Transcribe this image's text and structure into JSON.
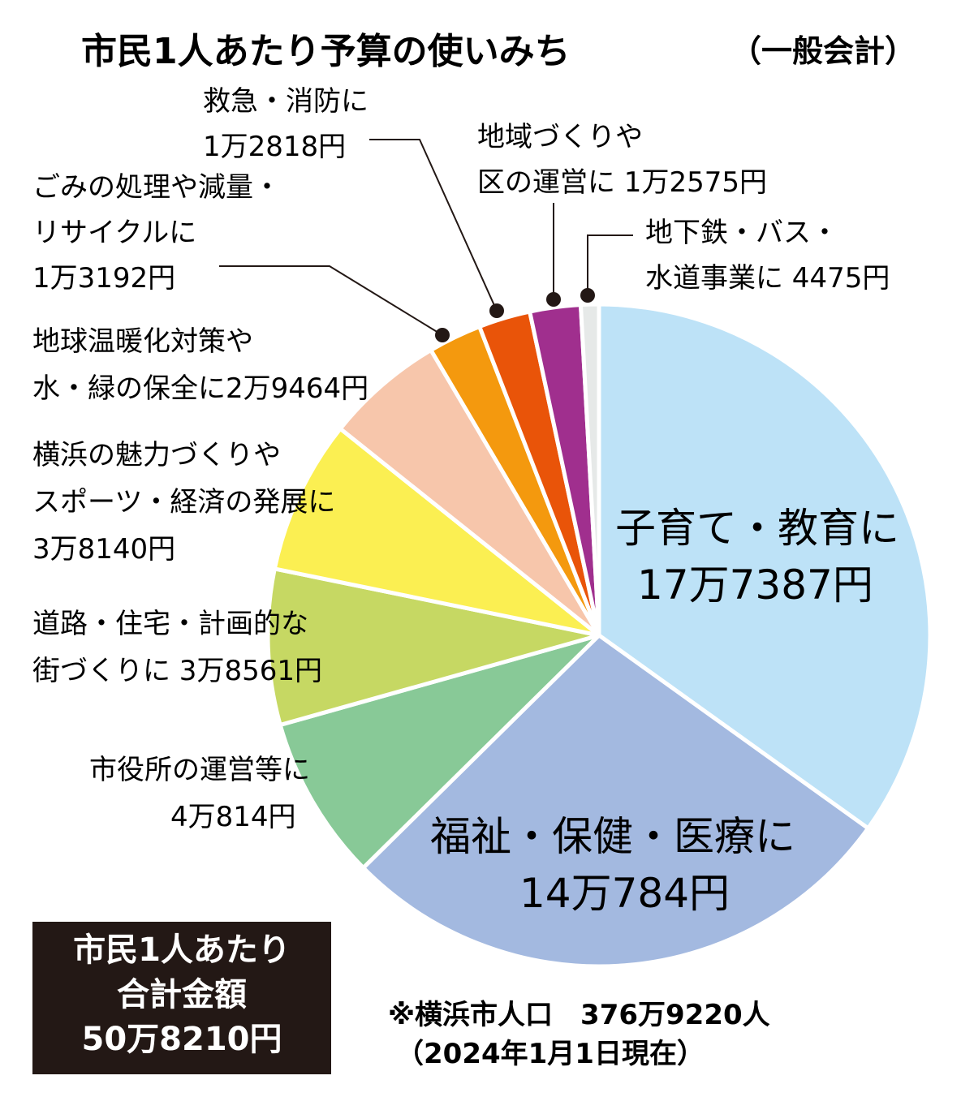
{
  "title": {
    "main": "市民1人あたり予算の使いみち",
    "sub": "（一般会計）"
  },
  "total": {
    "line1": "市民1人あたり",
    "line2": "合計金額",
    "line3": "50万8210円"
  },
  "note": {
    "line1": "※横浜市人口　376万9220人",
    "line2": "（2024年1月1日現在）"
  },
  "chart_data": {
    "type": "pie",
    "title": "市民1人あたり予算の使いみち（一般会計）",
    "unit": "円",
    "total": 508210,
    "slices": [
      {
        "name": "子育て・教育",
        "value": 177387,
        "color": "#bde2f7",
        "label_lines": [
          "子育て・教育に",
          "17万7387円"
        ]
      },
      {
        "name": "福祉・保健・医療",
        "value": 140784,
        "color": "#a3b9e0",
        "label_lines": [
          "福祉・保健・医療に",
          "14万784円"
        ]
      },
      {
        "name": "市役所の運営等",
        "value": 40814,
        "color": "#88c997",
        "label_lines": [
          "市役所の運営等に",
          "4万814円"
        ]
      },
      {
        "name": "道路・住宅・計画的な街づくり",
        "value": 38561,
        "color": "#c6d863",
        "label_lines": [
          "道路・住宅・計画的な",
          "街づくりに 3万8561円"
        ]
      },
      {
        "name": "横浜の魅力づくりやスポーツ・経済の発展",
        "value": 38140,
        "color": "#fbef52",
        "label_lines": [
          "横浜の魅力づくりや",
          "スポーツ・経済の発展に",
          "3万8140円"
        ]
      },
      {
        "name": "地球温暖化対策や水・緑の保全",
        "value": 29464,
        "color": "#f7c6ab",
        "label_lines": [
          "地球温暖化対策や",
          "水・緑の保全に2万9464円"
        ]
      },
      {
        "name": "ごみの処理や減量・リサイクル",
        "value": 13192,
        "color": "#f4990e",
        "label_lines": [
          "ごみの処理や減量・",
          "リサイクルに",
          "1万3192円"
        ]
      },
      {
        "name": "救急・消防",
        "value": 12818,
        "color": "#e95409",
        "label_lines": [
          "救急・消防に",
          "1万2818円"
        ]
      },
      {
        "name": "地域づくりや区の運営",
        "value": 12575,
        "color": "#a02f8e",
        "label_lines": [
          "地域づくりや",
          "区の運営に 1万2575円"
        ]
      },
      {
        "name": "地下鉄・バス・水道事業",
        "value": 4475,
        "color": "#e6e9e8",
        "label_lines": [
          "地下鉄・バス・",
          "水道事業に 4475円"
        ]
      }
    ]
  }
}
